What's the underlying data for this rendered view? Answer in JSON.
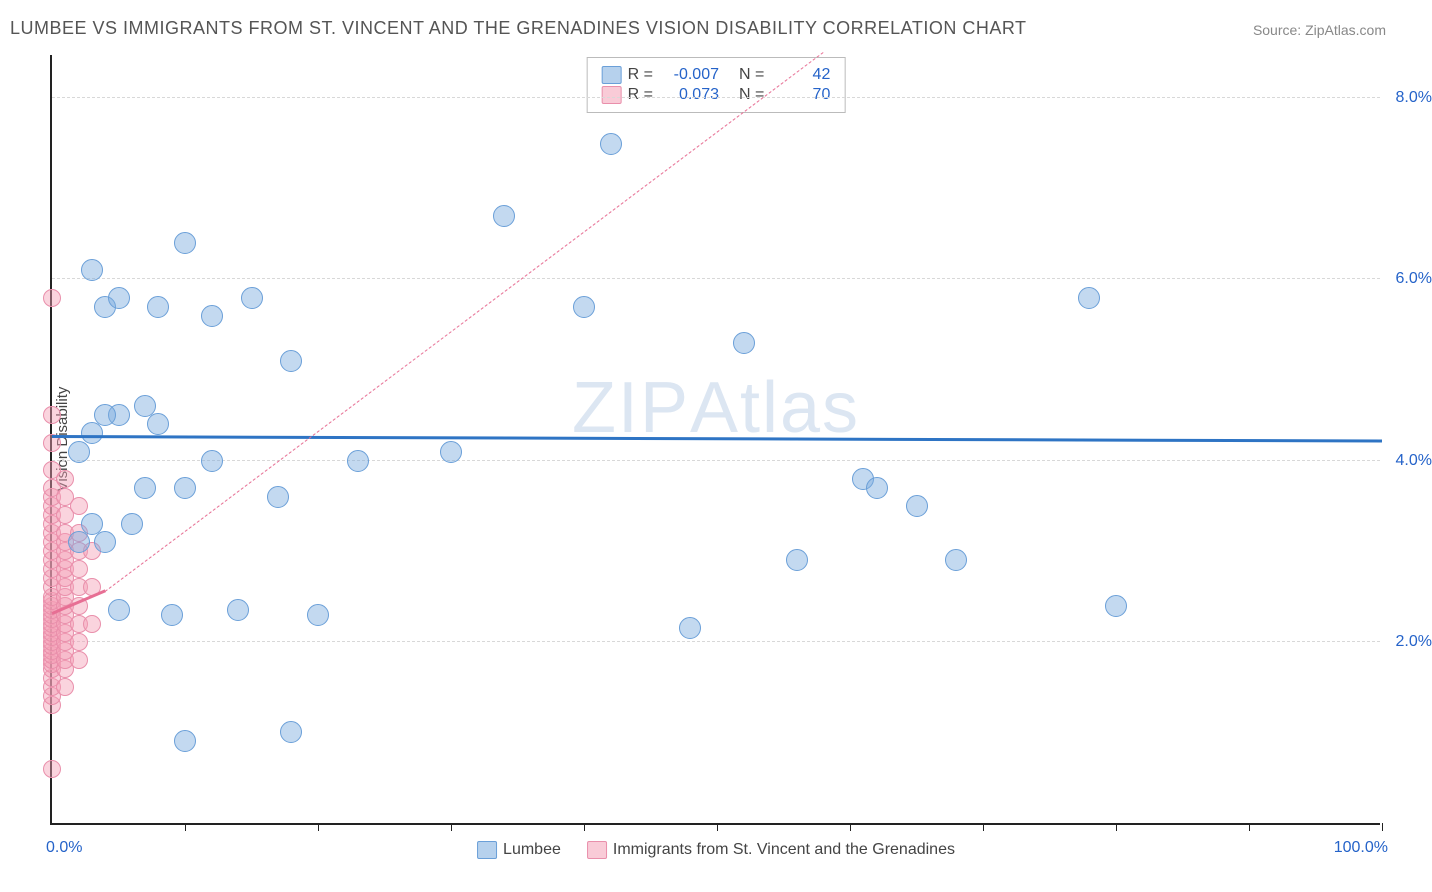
{
  "title": "LUMBEE VS IMMIGRANTS FROM ST. VINCENT AND THE GRENADINES VISION DISABILITY CORRELATION CHART",
  "source": "Source: ZipAtlas.com",
  "watermark_a": "ZIP",
  "watermark_b": "Atlas",
  "chart": {
    "type": "scatter",
    "xlim": [
      0,
      100
    ],
    "ylim": [
      0,
      8.5
    ],
    "x_ticks": [
      10,
      20,
      30,
      40,
      50,
      60,
      70,
      80,
      90,
      100
    ],
    "y_gridlines": [
      2.0,
      4.0,
      6.0,
      8.0
    ],
    "y_tick_labels": [
      "2.0%",
      "4.0%",
      "6.0%",
      "8.0%"
    ],
    "x_min_label": "0.0%",
    "x_max_label": "100.0%",
    "y_axis_label": "Vision Disability",
    "background_color": "#ffffff",
    "grid_color": "#d8d8d8",
    "point_radius_blue": 11,
    "point_radius_pink": 9,
    "colors": {
      "blue_fill": "rgba(122,171,222,0.45)",
      "blue_stroke": "#6a9fd8",
      "pink_fill": "rgba(244,160,182,0.45)",
      "pink_stroke": "#e98fab",
      "blue_line": "#2e74c4",
      "pink_line": "#e76f94",
      "tick_text": "#2563c9"
    },
    "series_blue": {
      "name": "Lumbee",
      "R": "-0.007",
      "N": "42",
      "trend": {
        "x1": 0,
        "y1": 4.25,
        "x2": 100,
        "y2": 4.2,
        "width": 3,
        "dash": "solid"
      },
      "points": [
        [
          2,
          4.1
        ],
        [
          3,
          6.1
        ],
        [
          3,
          3.3
        ],
        [
          4,
          3.1
        ],
        [
          4,
          5.7
        ],
        [
          5,
          4.5
        ],
        [
          5,
          5.8
        ],
        [
          5,
          2.35
        ],
        [
          7,
          4.6
        ],
        [
          7,
          3.7
        ],
        [
          8,
          5.7
        ],
        [
          8,
          4.4
        ],
        [
          10,
          0.9
        ],
        [
          10,
          6.4
        ],
        [
          10,
          3.7
        ],
        [
          12,
          4.0
        ],
        [
          12,
          5.6
        ],
        [
          14,
          2.35
        ],
        [
          15,
          5.8
        ],
        [
          17,
          3.6
        ],
        [
          18,
          1.0
        ],
        [
          18,
          5.1
        ],
        [
          20,
          2.3
        ],
        [
          23,
          4.0
        ],
        [
          30,
          4.1
        ],
        [
          34,
          6.7
        ],
        [
          40,
          5.7
        ],
        [
          42,
          7.5
        ],
        [
          48,
          2.15
        ],
        [
          52,
          5.3
        ],
        [
          56,
          2.9
        ],
        [
          61,
          3.8
        ],
        [
          62,
          3.7
        ],
        [
          65,
          3.5
        ],
        [
          68,
          2.9
        ],
        [
          78,
          5.8
        ],
        [
          80,
          2.4
        ],
        [
          4,
          4.5
        ],
        [
          6,
          3.3
        ],
        [
          2,
          3.1
        ],
        [
          3,
          4.3
        ],
        [
          9,
          2.3
        ]
      ]
    },
    "series_pink": {
      "name": "Immigrants from St. Vincent and the Grenadines",
      "R": "0.073",
      "N": "70",
      "trend_solid": {
        "x1": 0,
        "y1": 2.3,
        "x2": 4,
        "y2": 2.55,
        "width": 3,
        "dash": "solid"
      },
      "trend_dash": {
        "x1": 4,
        "y1": 2.55,
        "x2": 58,
        "y2": 8.5,
        "width": 1.5,
        "dash": "dashed"
      },
      "points": [
        [
          0,
          0.6
        ],
        [
          0,
          1.3
        ],
        [
          0,
          1.4
        ],
        [
          0,
          1.5
        ],
        [
          0,
          1.6
        ],
        [
          0,
          1.7
        ],
        [
          0,
          1.75
        ],
        [
          0,
          1.8
        ],
        [
          0,
          1.85
        ],
        [
          0,
          1.9
        ],
        [
          0,
          1.95
        ],
        [
          0,
          2.0
        ],
        [
          0,
          2.05
        ],
        [
          0,
          2.1
        ],
        [
          0,
          2.15
        ],
        [
          0,
          2.2
        ],
        [
          0,
          2.25
        ],
        [
          0,
          2.3
        ],
        [
          0,
          2.35
        ],
        [
          0,
          2.4
        ],
        [
          0,
          2.45
        ],
        [
          0,
          2.5
        ],
        [
          0,
          2.6
        ],
        [
          0,
          2.7
        ],
        [
          0,
          2.8
        ],
        [
          0,
          2.9
        ],
        [
          0,
          3.0
        ],
        [
          0,
          3.1
        ],
        [
          0,
          3.2
        ],
        [
          0,
          3.3
        ],
        [
          0,
          3.4
        ],
        [
          0,
          3.5
        ],
        [
          0,
          3.6
        ],
        [
          0,
          3.7
        ],
        [
          0,
          3.9
        ],
        [
          0,
          4.2
        ],
        [
          0,
          4.5
        ],
        [
          0,
          5.8
        ],
        [
          1,
          1.5
        ],
        [
          1,
          1.7
        ],
        [
          1,
          1.8
        ],
        [
          1,
          1.9
        ],
        [
          1,
          2.0
        ],
        [
          1,
          2.1
        ],
        [
          1,
          2.2
        ],
        [
          1,
          2.3
        ],
        [
          1,
          2.4
        ],
        [
          1,
          2.5
        ],
        [
          1,
          2.6
        ],
        [
          1,
          2.7
        ],
        [
          1,
          2.8
        ],
        [
          1,
          2.9
        ],
        [
          1,
          3.0
        ],
        [
          1,
          3.1
        ],
        [
          1,
          3.2
        ],
        [
          1,
          3.4
        ],
        [
          1,
          3.6
        ],
        [
          1,
          3.8
        ],
        [
          2,
          1.8
        ],
        [
          2,
          2.0
        ],
        [
          2,
          2.2
        ],
        [
          2,
          2.4
        ],
        [
          2,
          2.6
        ],
        [
          2,
          2.8
        ],
        [
          2,
          3.0
        ],
        [
          2,
          3.2
        ],
        [
          2,
          3.5
        ],
        [
          3,
          2.2
        ],
        [
          3,
          2.6
        ],
        [
          3,
          3.0
        ]
      ]
    }
  },
  "legend_top": [
    {
      "swatch_fill": "rgba(122,171,222,0.55)",
      "swatch_stroke": "#6a9fd8",
      "R_label": "R =",
      "R": "-0.007",
      "N_label": "N =",
      "N": "42"
    },
    {
      "swatch_fill": "rgba(244,160,182,0.55)",
      "swatch_stroke": "#e98fab",
      "R_label": "R =",
      "R": "0.073",
      "N_label": "N =",
      "N": "70"
    }
  ],
  "legend_bottom": [
    {
      "swatch_fill": "rgba(122,171,222,0.55)",
      "swatch_stroke": "#6a9fd8",
      "label": "Lumbee"
    },
    {
      "swatch_fill": "rgba(244,160,182,0.55)",
      "swatch_stroke": "#e98fab",
      "label": "Immigrants from St. Vincent and the Grenadines"
    }
  ]
}
